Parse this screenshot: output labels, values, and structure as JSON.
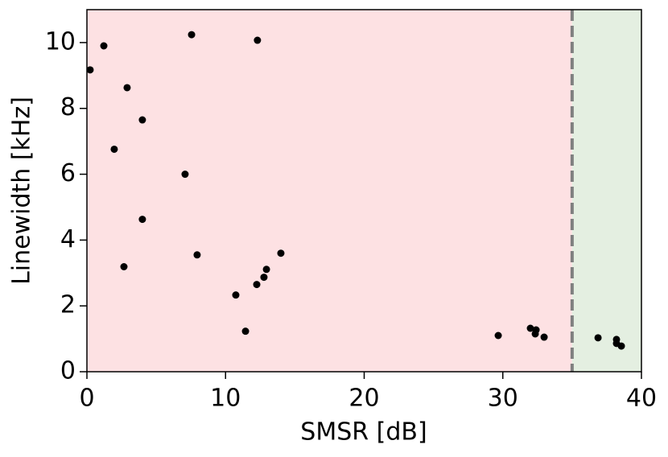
{
  "chart_data": {
    "type": "scatter",
    "x_label": "SMSR [dB]",
    "y_label": "Linewidth [kHz]",
    "x": [
      0.23,
      1.22,
      7.55,
      12.3,
      2.9,
      4.0,
      1.97,
      7.08,
      4.0,
      7.95,
      2.67,
      13.99,
      12.95,
      12.77,
      12.25,
      10.74,
      11.44,
      29.67,
      31.99,
      32.4,
      32.34,
      32.98,
      36.87,
      38.2,
      38.2,
      38.55
    ],
    "values": [
      9.17,
      9.9,
      10.24,
      10.07,
      8.63,
      7.65,
      6.76,
      6.0,
      4.63,
      3.55,
      3.19,
      3.6,
      3.11,
      2.87,
      2.65,
      2.33,
      1.23,
      1.1,
      1.32,
      1.27,
      1.15,
      1.05,
      1.03,
      0.98,
      0.86,
      0.78
    ],
    "color": "#000000",
    "xlim": [
      0,
      40
    ],
    "xticks": [
      0,
      10,
      20,
      30,
      40
    ],
    "ylim": [
      0,
      11
    ],
    "yticks": [
      0,
      2,
      4,
      6,
      8,
      10
    ],
    "regions": [
      {
        "from": 0,
        "to": 35,
        "color": "#fde1e3"
      },
      {
        "from": 35,
        "to": 40,
        "color": "#e4efe1"
      }
    ],
    "threshold": {
      "x": 35,
      "color": "#808080"
    }
  }
}
